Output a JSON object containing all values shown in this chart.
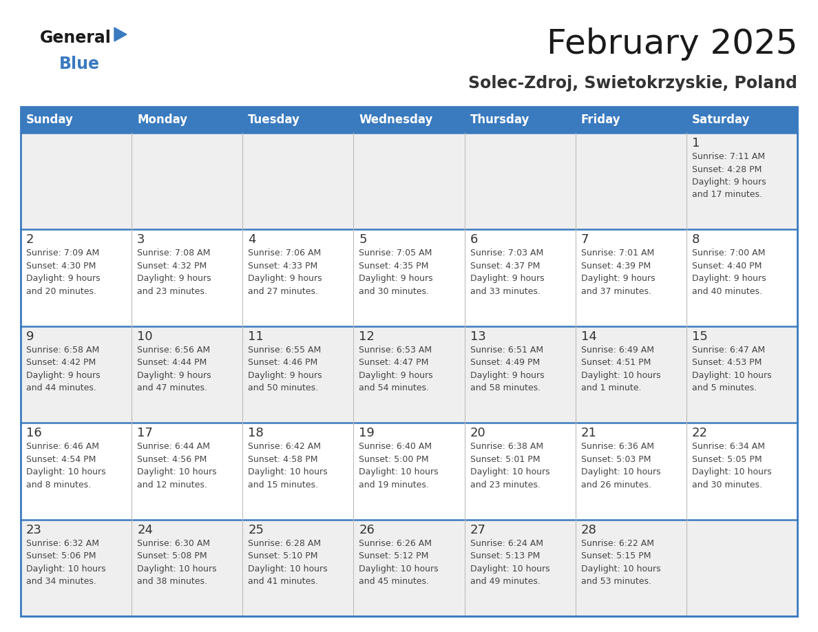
{
  "title": "February 2025",
  "subtitle": "Solec-Zdroj, Swietokrzyskie, Poland",
  "header_color": "#3a7abf",
  "header_text_color": "#ffffff",
  "cell_bg_odd": "#efefef",
  "cell_bg_even": "#ffffff",
  "border_color": "#3a7abf",
  "separator_color": "#bbbbbb",
  "day_number_color": "#333333",
  "info_text_color": "#444444",
  "days_of_week": [
    "Sunday",
    "Monday",
    "Tuesday",
    "Wednesday",
    "Thursday",
    "Friday",
    "Saturday"
  ],
  "weeks": [
    [
      {
        "day": null,
        "info": null
      },
      {
        "day": null,
        "info": null
      },
      {
        "day": null,
        "info": null
      },
      {
        "day": null,
        "info": null
      },
      {
        "day": null,
        "info": null
      },
      {
        "day": null,
        "info": null
      },
      {
        "day": "1",
        "info": "Sunrise: 7:11 AM\nSunset: 4:28 PM\nDaylight: 9 hours\nand 17 minutes."
      }
    ],
    [
      {
        "day": "2",
        "info": "Sunrise: 7:09 AM\nSunset: 4:30 PM\nDaylight: 9 hours\nand 20 minutes."
      },
      {
        "day": "3",
        "info": "Sunrise: 7:08 AM\nSunset: 4:32 PM\nDaylight: 9 hours\nand 23 minutes."
      },
      {
        "day": "4",
        "info": "Sunrise: 7:06 AM\nSunset: 4:33 PM\nDaylight: 9 hours\nand 27 minutes."
      },
      {
        "day": "5",
        "info": "Sunrise: 7:05 AM\nSunset: 4:35 PM\nDaylight: 9 hours\nand 30 minutes."
      },
      {
        "day": "6",
        "info": "Sunrise: 7:03 AM\nSunset: 4:37 PM\nDaylight: 9 hours\nand 33 minutes."
      },
      {
        "day": "7",
        "info": "Sunrise: 7:01 AM\nSunset: 4:39 PM\nDaylight: 9 hours\nand 37 minutes."
      },
      {
        "day": "8",
        "info": "Sunrise: 7:00 AM\nSunset: 4:40 PM\nDaylight: 9 hours\nand 40 minutes."
      }
    ],
    [
      {
        "day": "9",
        "info": "Sunrise: 6:58 AM\nSunset: 4:42 PM\nDaylight: 9 hours\nand 44 minutes."
      },
      {
        "day": "10",
        "info": "Sunrise: 6:56 AM\nSunset: 4:44 PM\nDaylight: 9 hours\nand 47 minutes."
      },
      {
        "day": "11",
        "info": "Sunrise: 6:55 AM\nSunset: 4:46 PM\nDaylight: 9 hours\nand 50 minutes."
      },
      {
        "day": "12",
        "info": "Sunrise: 6:53 AM\nSunset: 4:47 PM\nDaylight: 9 hours\nand 54 minutes."
      },
      {
        "day": "13",
        "info": "Sunrise: 6:51 AM\nSunset: 4:49 PM\nDaylight: 9 hours\nand 58 minutes."
      },
      {
        "day": "14",
        "info": "Sunrise: 6:49 AM\nSunset: 4:51 PM\nDaylight: 10 hours\nand 1 minute."
      },
      {
        "day": "15",
        "info": "Sunrise: 6:47 AM\nSunset: 4:53 PM\nDaylight: 10 hours\nand 5 minutes."
      }
    ],
    [
      {
        "day": "16",
        "info": "Sunrise: 6:46 AM\nSunset: 4:54 PM\nDaylight: 10 hours\nand 8 minutes."
      },
      {
        "day": "17",
        "info": "Sunrise: 6:44 AM\nSunset: 4:56 PM\nDaylight: 10 hours\nand 12 minutes."
      },
      {
        "day": "18",
        "info": "Sunrise: 6:42 AM\nSunset: 4:58 PM\nDaylight: 10 hours\nand 15 minutes."
      },
      {
        "day": "19",
        "info": "Sunrise: 6:40 AM\nSunset: 5:00 PM\nDaylight: 10 hours\nand 19 minutes."
      },
      {
        "day": "20",
        "info": "Sunrise: 6:38 AM\nSunset: 5:01 PM\nDaylight: 10 hours\nand 23 minutes."
      },
      {
        "day": "21",
        "info": "Sunrise: 6:36 AM\nSunset: 5:03 PM\nDaylight: 10 hours\nand 26 minutes."
      },
      {
        "day": "22",
        "info": "Sunrise: 6:34 AM\nSunset: 5:05 PM\nDaylight: 10 hours\nand 30 minutes."
      }
    ],
    [
      {
        "day": "23",
        "info": "Sunrise: 6:32 AM\nSunset: 5:06 PM\nDaylight: 10 hours\nand 34 minutes."
      },
      {
        "day": "24",
        "info": "Sunrise: 6:30 AM\nSunset: 5:08 PM\nDaylight: 10 hours\nand 38 minutes."
      },
      {
        "day": "25",
        "info": "Sunrise: 6:28 AM\nSunset: 5:10 PM\nDaylight: 10 hours\nand 41 minutes."
      },
      {
        "day": "26",
        "info": "Sunrise: 6:26 AM\nSunset: 5:12 PM\nDaylight: 10 hours\nand 45 minutes."
      },
      {
        "day": "27",
        "info": "Sunrise: 6:24 AM\nSunset: 5:13 PM\nDaylight: 10 hours\nand 49 minutes."
      },
      {
        "day": "28",
        "info": "Sunrise: 6:22 AM\nSunset: 5:15 PM\nDaylight: 10 hours\nand 53 minutes."
      },
      {
        "day": null,
        "info": null
      }
    ]
  ],
  "logo_text_general": "General",
  "logo_text_blue": "Blue",
  "logo_color_general": "#1a1a1a",
  "logo_color_blue": "#3a7abf",
  "logo_triangle_color": "#3a7abf",
  "title_fontsize": 36,
  "subtitle_fontsize": 17,
  "header_fontsize": 12,
  "day_number_fontsize": 13,
  "info_fontsize": 9
}
